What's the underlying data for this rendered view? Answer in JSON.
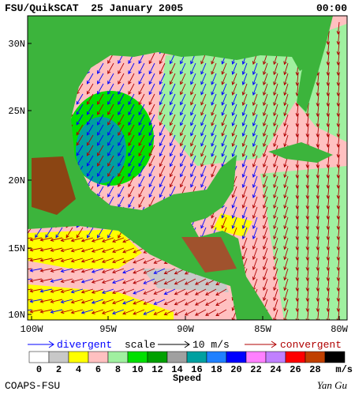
{
  "header": {
    "title": "FSU/QuikSCAT  25 January 2005",
    "time": "00:00"
  },
  "map": {
    "lat_labels": [
      "30N",
      "25N",
      "20N",
      "15N",
      "10N"
    ],
    "lon_labels": [
      "100W",
      "95W",
      "90W",
      "85W",
      "80W"
    ]
  },
  "legend": {
    "divergent": "divergent",
    "scale": "scale",
    "scale_value": "10 m/s",
    "convergent": "convergent"
  },
  "colorbar": {
    "ticks": [
      0,
      2,
      4,
      6,
      8,
      10,
      12,
      14,
      16,
      18,
      20,
      22,
      24,
      26,
      28
    ],
    "unit": "m/s",
    "label": "Speed",
    "colors": [
      "#ffffff",
      "#c8c8c8",
      "#ffff00",
      "#ffc0c0",
      "#a0f0a0",
      "#00e000",
      "#00a000",
      "#a0a0a0",
      "#00a0a0",
      "#2080ff",
      "#0000ff",
      "#ff80ff",
      "#c080ff",
      "#ff0000",
      "#c04000",
      "#000000"
    ]
  },
  "footer": {
    "left": "COAPS-FSU",
    "right": "Yan Gu"
  }
}
